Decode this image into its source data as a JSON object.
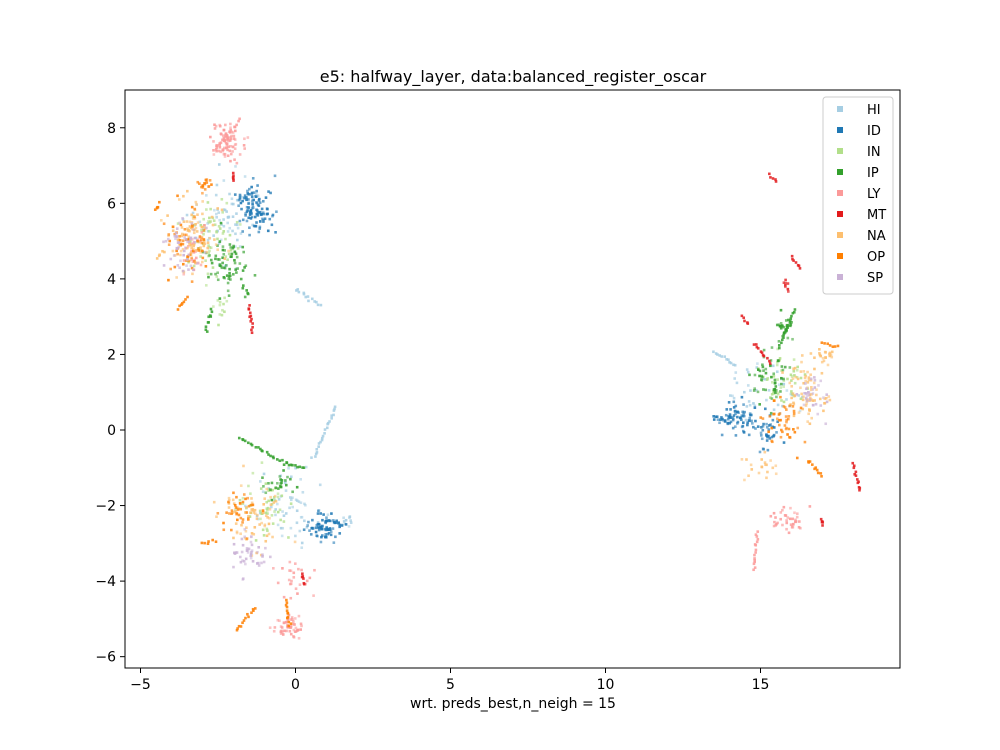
{
  "chart_data": {
    "type": "scatter",
    "title": "e5: halfway_layer, data:balanced_register_oscar",
    "xlabel": "wrt. preds_best,n_neigh = 15",
    "ylabel": "",
    "xlim": [
      -5.5,
      19.5
    ],
    "ylim": [
      -6.3,
      9.0
    ],
    "xticks": [
      -5,
      0,
      5,
      10,
      15
    ],
    "yticks": [
      -6,
      -4,
      -2,
      0,
      2,
      4,
      6,
      8
    ],
    "xtick_labels": [
      "−5",
      "0",
      "5",
      "10",
      "15"
    ],
    "ytick_labels": [
      "−6",
      "−4",
      "−2",
      "0",
      "2",
      "4",
      "6",
      "8"
    ],
    "grid": false,
    "legend_position": "top-right",
    "series": [
      {
        "name": "HI",
        "color": "#a6cee3",
        "clusters": [
          [
            -2.3,
            5.6,
            0.8,
            1.0,
            70
          ],
          [
            -0.2,
            -2.0,
            0.9,
            0.9,
            60
          ],
          [
            15.2,
            1.0,
            1.0,
            0.7,
            45
          ],
          [
            1.6,
            -2.4,
            0.2,
            0.2,
            10
          ]
        ],
        "curves": [
          [
            [
              0.0,
              3.7
            ],
            [
              0.8,
              3.3
            ]
          ],
          [
            [
              0.6,
              -0.7
            ],
            [
              1.3,
              0.6
            ]
          ],
          [
            [
              13.5,
              2.1
            ],
            [
              14.2,
              1.7
            ]
          ]
        ]
      },
      {
        "name": "ID",
        "color": "#1f78b4",
        "clusters": [
          [
            -1.3,
            5.9,
            0.45,
            0.55,
            110
          ],
          [
            0.9,
            -2.6,
            0.5,
            0.35,
            70
          ],
          [
            14.3,
            0.3,
            0.6,
            0.35,
            70
          ],
          [
            15.3,
            0.0,
            0.4,
            0.4,
            35
          ]
        ],
        "curves": [
          [
            [
              1.0,
              -2.4
            ],
            [
              1.6,
              -2.5
            ]
          ],
          [
            [
              13.5,
              0.4
            ],
            [
              14.0,
              0.2
            ]
          ]
        ]
      },
      {
        "name": "IN",
        "color": "#b2df8a",
        "clusters": [
          [
            -2.8,
            5.1,
            0.8,
            0.9,
            60
          ],
          [
            -1.0,
            -2.0,
            0.7,
            0.7,
            50
          ],
          [
            15.8,
            1.4,
            0.7,
            0.6,
            45
          ],
          [
            -2.5,
            3.2,
            0.4,
            0.4,
            12
          ]
        ],
        "curves": []
      },
      {
        "name": "IP",
        "color": "#33a02c",
        "clusters": [
          [
            -2.2,
            4.4,
            0.6,
            0.6,
            70
          ],
          [
            15.3,
            1.4,
            0.5,
            0.6,
            50
          ],
          [
            15.8,
            2.7,
            0.2,
            0.3,
            30
          ],
          [
            -0.5,
            -1.4,
            0.5,
            0.3,
            25
          ]
        ],
        "curves": [
          [
            [
              -1.8,
              -0.2
            ],
            [
              -0.3,
              -0.9
            ],
            [
              0.3,
              -1.0
            ]
          ],
          [
            [
              -2.7,
              3.2
            ],
            [
              -2.9,
              2.6
            ]
          ],
          [
            [
              -1.7,
              3.8
            ],
            [
              -1.5,
              3.6
            ]
          ],
          [
            [
              15.6,
              2.2
            ],
            [
              16.1,
              3.2
            ]
          ]
        ]
      },
      {
        "name": "LY",
        "color": "#fb9a99",
        "clusters": [
          [
            -2.2,
            7.6,
            0.35,
            0.45,
            80
          ],
          [
            -0.2,
            -5.2,
            0.4,
            0.25,
            55
          ],
          [
            16.0,
            -2.4,
            0.5,
            0.25,
            40
          ],
          [
            -3.3,
            4.8,
            0.4,
            0.6,
            25
          ],
          [
            0.0,
            -4.0,
            0.5,
            0.6,
            25
          ]
        ],
        "curves": [
          [
            [
              14.9,
              -2.7
            ],
            [
              14.8,
              -3.7
            ]
          ],
          [
            [
              -1.8,
              8.2
            ],
            [
              -2.6,
              7.4
            ]
          ]
        ]
      },
      {
        "name": "MT",
        "color": "#e31a1c",
        "clusters": [
          [
            15.8,
            3.8,
            0.1,
            0.2,
            8
          ]
        ],
        "curves": [
          [
            [
              -1.5,
              3.3
            ],
            [
              -1.4,
              2.6
            ]
          ],
          [
            [
              15.3,
              6.8
            ],
            [
              15.5,
              6.6
            ]
          ],
          [
            [
              14.4,
              3.0
            ],
            [
              14.6,
              2.8
            ]
          ],
          [
            [
              14.8,
              2.3
            ],
            [
              15.3,
              1.8
            ]
          ],
          [
            [
              18.0,
              -0.9
            ],
            [
              18.2,
              -1.6
            ]
          ],
          [
            [
              16.0,
              4.6
            ],
            [
              16.3,
              4.3
            ]
          ],
          [
            [
              0.2,
              -3.8
            ],
            [
              0.3,
              -4.1
            ]
          ],
          [
            [
              17.0,
              -2.4
            ],
            [
              17.0,
              -2.5
            ]
          ],
          [
            [
              -2.0,
              6.8
            ],
            [
              -2.0,
              6.6
            ]
          ]
        ]
      },
      {
        "name": "NA",
        "color": "#fdbf6f",
        "clusters": [
          [
            -3.2,
            5.2,
            0.8,
            0.8,
            90
          ],
          [
            -1.5,
            -2.3,
            0.8,
            0.8,
            70
          ],
          [
            16.5,
            1.0,
            0.6,
            0.7,
            70
          ],
          [
            17.0,
            2.0,
            0.3,
            0.2,
            20
          ],
          [
            15.0,
            -1.0,
            0.5,
            0.3,
            20
          ]
        ],
        "curves": [
          [
            [
              -4.2,
              4.7
            ],
            [
              -4.5,
              4.6
            ]
          ]
        ]
      },
      {
        "name": "OP",
        "color": "#ff7f00",
        "clusters": [
          [
            -3.5,
            5.0,
            0.6,
            0.8,
            55
          ],
          [
            -1.8,
            -2.2,
            0.5,
            0.5,
            35
          ],
          [
            15.8,
            0.2,
            0.6,
            0.6,
            45
          ],
          [
            -2.9,
            6.5,
            0.2,
            0.15,
            18
          ]
        ],
        "curves": [
          [
            [
              -4.5,
              5.8
            ],
            [
              -4.4,
              6.0
            ]
          ],
          [
            [
              -1.9,
              -5.3
            ],
            [
              -1.3,
              -4.7
            ]
          ],
          [
            [
              -0.3,
              -4.5
            ],
            [
              -0.2,
              -5.2
            ]
          ],
          [
            [
              16.5,
              -0.8
            ],
            [
              17.0,
              -1.2
            ]
          ],
          [
            [
              17.0,
              2.3
            ],
            [
              17.5,
              2.2
            ]
          ],
          [
            [
              -3.8,
              3.2
            ],
            [
              -3.5,
              3.5
            ]
          ],
          [
            [
              -3.0,
              -3.0
            ],
            [
              -2.6,
              -2.9
            ]
          ]
        ]
      },
      {
        "name": "SP",
        "color": "#cab2d6",
        "clusters": [
          [
            -3.6,
            4.8,
            0.5,
            0.6,
            45
          ],
          [
            -1.5,
            -3.3,
            0.5,
            0.5,
            45
          ],
          [
            16.7,
            0.9,
            0.4,
            0.5,
            30
          ]
        ],
        "curves": []
      }
    ]
  }
}
